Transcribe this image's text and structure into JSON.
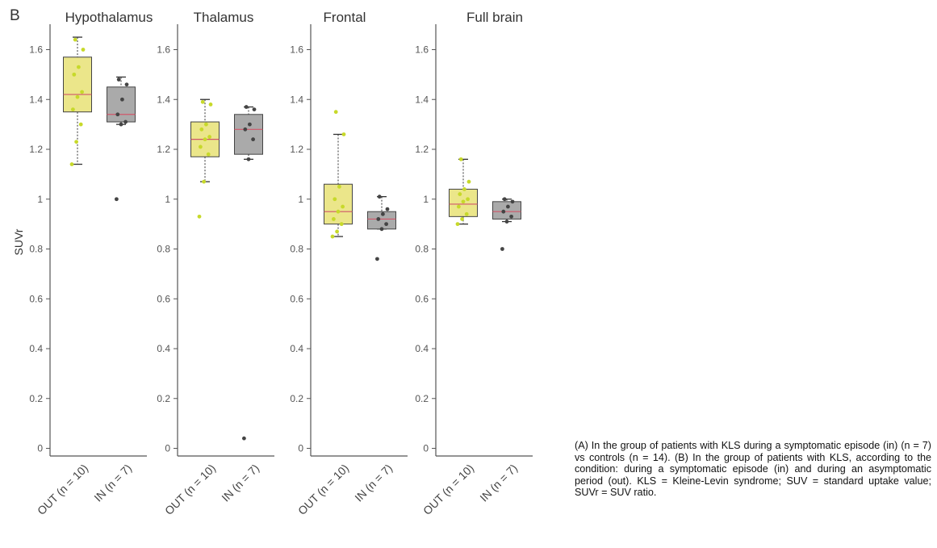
{
  "figure": {
    "panel_label": "B",
    "ylabel": "SUVr",
    "caption": "(A) In the group of patients with KLS during a symptomatic episode (in) (n = 7) vs controls (n = 14). (B) In the group of patients with KLS, according to the condition: during a symptomatic episode (in) and during an asymptomatic period (out). KLS = Kleine-Levin syndrome; SUV = standard uptake value; SUVr = SUV ratio."
  },
  "colors": {
    "out_fill": "#ebe68a",
    "out_dot": "#c7d92a",
    "in_fill": "#aaaaaa",
    "in_dot": "#444444",
    "median": "#d0576a",
    "axis": "#555555"
  },
  "chart_data": [
    {
      "type": "box",
      "title": "Hypothalamus",
      "ylim": [
        0,
        1.7
      ],
      "yticks": [
        "0",
        "0.2",
        "0.4",
        "0.6",
        "0.8",
        "1",
        "1.2",
        "1.4",
        "1.6"
      ],
      "categories": [
        "OUT (n = 10)",
        "IN (n = 7)"
      ],
      "boxes": [
        {
          "name": "OUT (n = 10)",
          "min": 1.14,
          "q1": 1.35,
          "median": 1.42,
          "q3": 1.57,
          "max": 1.65,
          "points": [
            1.14,
            1.23,
            1.3,
            1.36,
            1.41,
            1.43,
            1.5,
            1.53,
            1.6,
            1.64
          ]
        },
        {
          "name": "IN (n = 7)",
          "min": 1.3,
          "q1": 1.31,
          "median": 1.34,
          "q3": 1.45,
          "max": 1.49,
          "outliers": [
            1.0
          ],
          "points": [
            1.0,
            1.3,
            1.31,
            1.34,
            1.4,
            1.46,
            1.48
          ]
        }
      ]
    },
    {
      "type": "box",
      "title": "Thalamus",
      "ylim": [
        0,
        1.7
      ],
      "yticks": [
        "0",
        "0.2",
        "0.4",
        "0.6",
        "0.8",
        "1",
        "1.2",
        "1.4",
        "1.6"
      ],
      "categories": [
        "OUT (n = 10)",
        "IN (n = 7)"
      ],
      "boxes": [
        {
          "name": "OUT (n = 10)",
          "min": 1.07,
          "q1": 1.17,
          "median": 1.24,
          "q3": 1.31,
          "max": 1.4,
          "outliers": [
            0.93
          ],
          "points": [
            0.93,
            1.07,
            1.18,
            1.21,
            1.24,
            1.25,
            1.28,
            1.3,
            1.38,
            1.39
          ]
        },
        {
          "name": "IN (n = 7)",
          "min": 1.16,
          "q1": 1.18,
          "median": 1.28,
          "q3": 1.34,
          "max": 1.37,
          "outliers": [
            0.04
          ],
          "points": [
            0.04,
            1.16,
            1.24,
            1.28,
            1.3,
            1.36,
            1.37
          ]
        }
      ]
    },
    {
      "type": "box",
      "title": "Frontal",
      "ylim": [
        0,
        1.7
      ],
      "yticks": [
        "0",
        "0.2",
        "0.4",
        "0.6",
        "0.8",
        "1",
        "1.2",
        "1.4",
        "1.6"
      ],
      "categories": [
        "OUT (n = 10)",
        "IN (n = 7)"
      ],
      "boxes": [
        {
          "name": "OUT (n = 10)",
          "min": 0.85,
          "q1": 0.9,
          "median": 0.95,
          "q3": 1.06,
          "max": 1.26,
          "outliers": [
            1.35
          ],
          "points": [
            0.85,
            0.87,
            0.9,
            0.92,
            0.95,
            0.97,
            1.0,
            1.05,
            1.26,
            1.35
          ]
        },
        {
          "name": "IN (n = 7)",
          "min": 0.88,
          "q1": 0.88,
          "median": 0.92,
          "q3": 0.95,
          "max": 1.01,
          "outliers": [
            0.76
          ],
          "points": [
            0.76,
            0.88,
            0.9,
            0.92,
            0.94,
            0.96,
            1.01
          ]
        }
      ]
    },
    {
      "type": "box",
      "title": "Full brain",
      "ylim": [
        0,
        1.7
      ],
      "yticks": [
        "0",
        "0.2",
        "0.4",
        "0.6",
        "0.8",
        "1",
        "1.2",
        "1.4",
        "1.6"
      ],
      "categories": [
        "OUT (n = 10)",
        "IN (n = 7)"
      ],
      "boxes": [
        {
          "name": "OUT (n = 10)",
          "min": 0.9,
          "q1": 0.93,
          "median": 0.98,
          "q3": 1.04,
          "max": 1.16,
          "points": [
            0.9,
            0.92,
            0.94,
            0.97,
            0.99,
            1.0,
            1.02,
            1.04,
            1.07,
            1.16
          ]
        },
        {
          "name": "IN (n = 7)",
          "min": 0.91,
          "q1": 0.92,
          "median": 0.95,
          "q3": 0.99,
          "max": 1.0,
          "outliers": [
            0.8
          ],
          "points": [
            0.8,
            0.91,
            0.93,
            0.95,
            0.97,
            0.99,
            1.0
          ]
        }
      ]
    }
  ]
}
